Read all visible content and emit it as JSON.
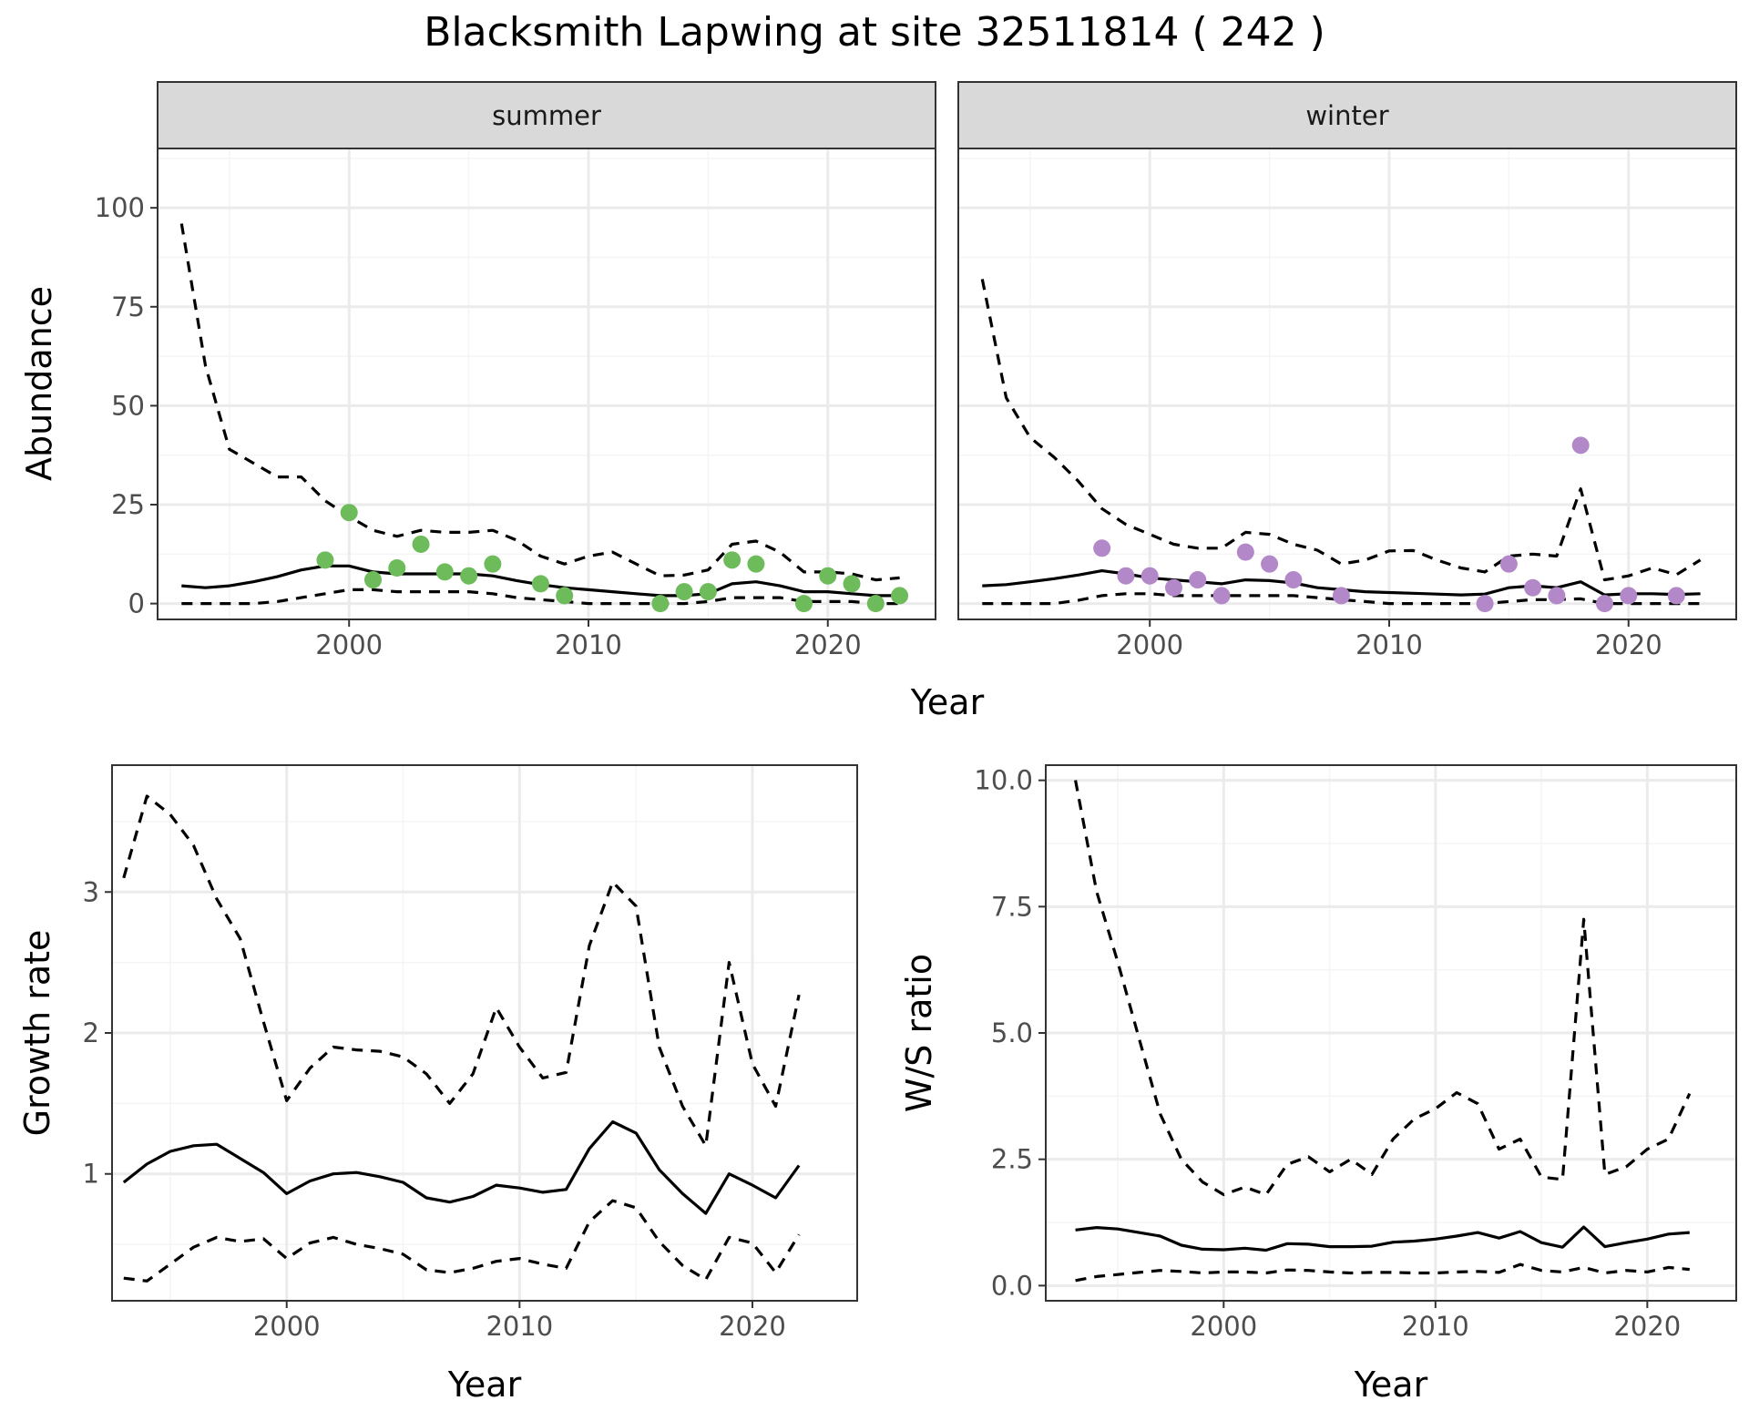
{
  "title": "Blacksmith Lapwing at site 32511814 ( 242 )",
  "colors": {
    "summer_points": "#6dbb5a",
    "winter_points": "#b388c8",
    "line": "#000000",
    "grid_major": "#ebebeb",
    "grid_minor": "#f5f5f5",
    "strip_fill": "#d9d9d9",
    "panel_border": "#333333"
  },
  "chart_data": [
    {
      "type": "line",
      "panel": "abundance",
      "ylabel": "Abundance",
      "xlabel": "Year",
      "xlim": [
        1992,
        2024.5
      ],
      "ylim": [
        -4,
        115
      ],
      "xticks": [
        2000,
        2010,
        2020
      ],
      "yticks": [
        0,
        25,
        50,
        75,
        100
      ],
      "grid": true,
      "facets": [
        {
          "strip": "summer",
          "x": [
            1993,
            1994,
            1995,
            1996,
            1997,
            1998,
            1999,
            2000,
            2001,
            2002,
            2003,
            2004,
            2005,
            2006,
            2007,
            2008,
            2009,
            2010,
            2011,
            2012,
            2013,
            2014,
            2015,
            2016,
            2017,
            2018,
            2019,
            2020,
            2021,
            2022,
            2023
          ],
          "series": [
            {
              "role": "mean",
              "values": [
                4.5,
                4,
                4.5,
                5.5,
                6.8,
                8.5,
                9.5,
                9.5,
                8,
                7.5,
                7.5,
                7.5,
                7.5,
                7,
                5.8,
                4.8,
                4,
                3.5,
                3,
                2.5,
                2,
                2,
                2.5,
                5,
                5.5,
                4.5,
                3,
                3,
                2.5,
                2,
                2
              ]
            },
            {
              "role": "upper",
              "values": [
                96,
                60,
                39,
                35.5,
                32,
                32,
                26,
                22,
                18.5,
                17,
                18.5,
                18,
                18,
                18.5,
                16,
                12,
                10,
                12,
                13,
                10,
                7,
                7.2,
                8.5,
                15,
                15.8,
                13,
                8,
                8,
                7.5,
                6,
                6.5
              ]
            },
            {
              "role": "lower",
              "values": [
                0,
                0,
                0,
                0,
                0.5,
                1.5,
                2.5,
                3.5,
                3.5,
                3,
                3,
                3,
                3,
                2.5,
                1.5,
                1,
                0.5,
                0,
                0,
                0,
                0,
                0,
                0.5,
                1.5,
                1.5,
                1.5,
                0.5,
                0.5,
                0.5,
                0,
                0
              ]
            }
          ],
          "points": {
            "x": [
              1999,
              2000,
              2001,
              2002,
              2003,
              2004,
              2005,
              2006,
              2008,
              2009,
              2013,
              2014,
              2015,
              2016,
              2017,
              2019,
              2020,
              2021,
              2022,
              2023
            ],
            "y": [
              11,
              23,
              6,
              9,
              15,
              8,
              7,
              10,
              5,
              2,
              0,
              3,
              3,
              11,
              10,
              0,
              7,
              5,
              0,
              2
            ]
          }
        },
        {
          "strip": "winter",
          "x": [
            1993,
            1994,
            1995,
            1996,
            1997,
            1998,
            1999,
            2000,
            2001,
            2002,
            2003,
            2004,
            2005,
            2006,
            2007,
            2008,
            2009,
            2010,
            2011,
            2012,
            2013,
            2014,
            2015,
            2016,
            2017,
            2018,
            2019,
            2020,
            2021,
            2022,
            2023
          ],
          "series": [
            {
              "role": "mean",
              "values": [
                4.5,
                4.8,
                5.5,
                6.3,
                7.2,
                8.3,
                7.5,
                6.5,
                6,
                5.5,
                5,
                6,
                5.8,
                5.2,
                4,
                3.5,
                3,
                2.8,
                2.6,
                2.4,
                2.2,
                2.4,
                4,
                4.5,
                4,
                5.5,
                2.2,
                2.5,
                2.5,
                2.3,
                2.5
              ]
            },
            {
              "role": "upper",
              "values": [
                82,
                52,
                42,
                37,
                31,
                24,
                20,
                17.5,
                15,
                14,
                14,
                18,
                17.5,
                15,
                13.5,
                10,
                11,
                13.3,
                13.4,
                11,
                9,
                8,
                12,
                12.5,
                12,
                29,
                6,
                7,
                9,
                7.3,
                11
              ]
            },
            {
              "role": "lower",
              "values": [
                0,
                0,
                0,
                0,
                0.8,
                2,
                2.5,
                2.5,
                2,
                2,
                2,
                2,
                2,
                2,
                1.5,
                1,
                0.5,
                0,
                0,
                0,
                0,
                0,
                0.5,
                1,
                1,
                1.2,
                0,
                0,
                0,
                0,
                0
              ]
            }
          ],
          "points": {
            "x": [
              1998,
              1999,
              2000,
              2001,
              2002,
              2003,
              2004,
              2005,
              2006,
              2008,
              2014,
              2015,
              2016,
              2017,
              2018,
              2019,
              2020,
              2022
            ],
            "y": [
              14,
              7,
              7,
              4,
              6,
              2,
              13,
              10,
              6,
              2,
              0,
              10,
              4,
              2,
              40,
              0,
              2,
              2
            ]
          }
        }
      ]
    },
    {
      "type": "line",
      "panel": "growth_rate",
      "ylabel": "Growth rate",
      "xlabel": "Year",
      "xlim": [
        1992.5,
        2024.5
      ],
      "ylim": [
        0.1,
        3.9
      ],
      "xticks": [
        2000,
        2010,
        2020
      ],
      "yticks": [
        1,
        2,
        3
      ],
      "grid": true,
      "x": [
        1993,
        1994,
        1995,
        1996,
        1997,
        1998,
        1999,
        2000,
        2001,
        2002,
        2003,
        2004,
        2005,
        2006,
        2007,
        2008,
        2009,
        2010,
        2011,
        2012,
        2013,
        2014,
        2015,
        2016,
        2017,
        2018,
        2019,
        2020,
        2021,
        2022
      ],
      "series": [
        {
          "role": "mean",
          "values": [
            0.94,
            1.07,
            1.16,
            1.2,
            1.21,
            1.11,
            1.01,
            0.86,
            0.95,
            1.0,
            1.01,
            0.98,
            0.94,
            0.83,
            0.8,
            0.84,
            0.92,
            0.9,
            0.87,
            0.89,
            1.18,
            1.37,
            1.29,
            1.03,
            0.86,
            0.72,
            1.0,
            0.92,
            0.83,
            1.06
          ]
        },
        {
          "role": "upper",
          "values": [
            3.1,
            3.68,
            3.55,
            3.33,
            2.95,
            2.67,
            2.08,
            1.52,
            1.75,
            1.9,
            1.88,
            1.87,
            1.83,
            1.71,
            1.5,
            1.71,
            2.18,
            1.9,
            1.68,
            1.72,
            2.62,
            3.07,
            2.9,
            1.9,
            1.48,
            1.2,
            2.5,
            1.78,
            1.48,
            2.27
          ]
        },
        {
          "role": "lower",
          "values": [
            0.26,
            0.24,
            0.36,
            0.48,
            0.55,
            0.52,
            0.54,
            0.4,
            0.51,
            0.55,
            0.5,
            0.47,
            0.43,
            0.32,
            0.3,
            0.33,
            0.38,
            0.4,
            0.36,
            0.33,
            0.66,
            0.81,
            0.76,
            0.52,
            0.35,
            0.25,
            0.55,
            0.51,
            0.3,
            0.57
          ]
        }
      ]
    },
    {
      "type": "line",
      "panel": "ws_ratio",
      "ylabel": "W/S ratio",
      "xlabel": "Year",
      "xlim": [
        1991.6,
        2024.2
      ],
      "ylim": [
        -0.3,
        10.3
      ],
      "xticks": [
        2000,
        2010,
        2020
      ],
      "yticks": [
        0.0,
        2.5,
        5.0,
        7.5,
        10.0
      ],
      "ytick_labels": [
        "0.0",
        "2.5",
        "5.0",
        "7.5",
        "10.0"
      ],
      "grid": true,
      "x": [
        1993,
        1994,
        1995,
        1996,
        1997,
        1998,
        1999,
        2000,
        2001,
        2002,
        2003,
        2004,
        2005,
        2006,
        2007,
        2008,
        2009,
        2010,
        2011,
        2012,
        2013,
        2014,
        2015,
        2016,
        2017,
        2018,
        2019,
        2020,
        2021,
        2022
      ],
      "series": [
        {
          "role": "mean",
          "values": [
            1.1,
            1.15,
            1.12,
            1.05,
            0.98,
            0.8,
            0.72,
            0.71,
            0.74,
            0.7,
            0.83,
            0.82,
            0.77,
            0.77,
            0.78,
            0.86,
            0.88,
            0.92,
            0.98,
            1.05,
            0.94,
            1.07,
            0.85,
            0.76,
            1.16,
            0.77,
            0.85,
            0.92,
            1.02,
            1.05
          ]
        },
        {
          "role": "upper",
          "values": [
            10.0,
            7.8,
            6.4,
            4.9,
            3.4,
            2.5,
            2.05,
            1.8,
            1.95,
            1.8,
            2.4,
            2.55,
            2.25,
            2.5,
            2.2,
            2.9,
            3.3,
            3.5,
            3.82,
            3.6,
            2.7,
            2.9,
            2.15,
            2.1,
            7.25,
            2.2,
            2.35,
            2.7,
            2.9,
            3.8
          ]
        },
        {
          "role": "lower",
          "values": [
            0.1,
            0.18,
            0.22,
            0.26,
            0.3,
            0.28,
            0.25,
            0.27,
            0.27,
            0.25,
            0.31,
            0.3,
            0.27,
            0.25,
            0.26,
            0.26,
            0.25,
            0.25,
            0.27,
            0.28,
            0.26,
            0.42,
            0.3,
            0.27,
            0.36,
            0.25,
            0.3,
            0.27,
            0.36,
            0.32
          ]
        }
      ]
    }
  ]
}
